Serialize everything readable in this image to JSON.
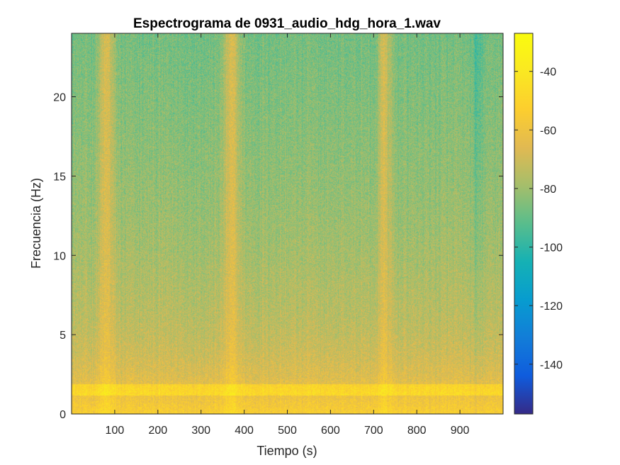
{
  "chart_data": {
    "type": "heatmap",
    "title": "Espectrograma de 0931_audio_hdg_hora_1.wav",
    "xlabel": "Tiempo (s)",
    "ylabel": "Frecuencia (Hz)",
    "xlim": [
      0,
      1000
    ],
    "ylim": [
      0,
      24
    ],
    "xticks": [
      100,
      200,
      300,
      400,
      500,
      600,
      700,
      800,
      900
    ],
    "yticks": [
      0,
      5,
      10,
      15,
      20
    ],
    "colorbar": {
      "colormap": "parula",
      "range": [
        -157,
        -27
      ],
      "ticks": [
        -140,
        -120,
        -100,
        -80,
        -60,
        -40
      ]
    },
    "features": {
      "low_freq_band_hz": [
        1.2,
        1.9
      ],
      "high_energy_times_s": [
        80,
        370,
        720
      ],
      "lower_energy_times_s": [
        705,
        940
      ]
    }
  }
}
